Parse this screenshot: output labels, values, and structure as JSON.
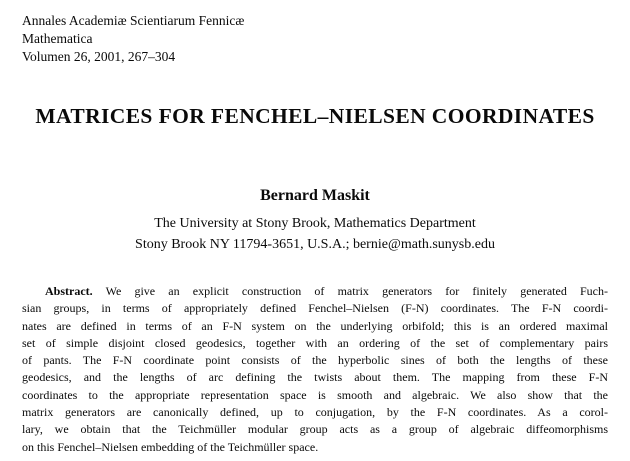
{
  "journal": {
    "name": "Annales Academiæ Scientiarum Fennicæ",
    "series": "Mathematica",
    "volume": "Volumen 26, 2001, 267–304"
  },
  "title": "MATRICES FOR FENCHEL–NIELSEN COORDINATES",
  "author": {
    "name": "Bernard Maskit",
    "affiliation1": "The University at Stony Brook, Mathematics Department",
    "affiliation2": "Stony Brook NY 11794-3651, U.S.A.; bernie@math.sunysb.edu"
  },
  "abstract": {
    "label": "Abstract.",
    "lines": [
      "We give an explicit construction of matrix generators for finitely generated Fuch-",
      "sian groups, in terms of appropriately defined Fenchel–Nielsen (F-N) coordinates. The F-N coordi-",
      "nates are defined in terms of an F-N system on the underlying orbifold; this is an ordered maximal",
      "set of simple disjoint closed geodesics, together with an ordering of the set of complementary pairs",
      "of pants. The F-N coordinate point consists of the hyperbolic sines of both the lengths of these",
      "geodesics, and the lengths of arc defining the twists about them. The mapping from these F-N",
      "coordinates to the appropriate representation space is smooth and algebraic. We also show that the",
      "matrix generators are canonically defined, up to conjugation, by the F-N coordinates. As a corol-",
      "lary, we obtain that the Teichmüller modular group acts as a group of algebraic diffeomorphisms",
      "on this Fenchel–Nielsen embedding of the Teichmüller space."
    ]
  },
  "colors": {
    "background": "#ffffff",
    "text": "#0a0a0a"
  }
}
